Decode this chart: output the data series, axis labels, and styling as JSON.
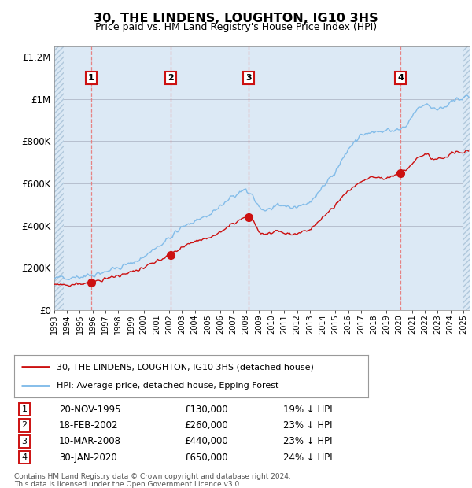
{
  "title": "30, THE LINDENS, LOUGHTON, IG10 3HS",
  "subtitle": "Price paid vs. HM Land Registry's House Price Index (HPI)",
  "footer1": "Contains HM Land Registry data © Crown copyright and database right 2024.",
  "footer2": "This data is licensed under the Open Government Licence v3.0.",
  "legend1": "30, THE LINDENS, LOUGHTON, IG10 3HS (detached house)",
  "legend2": "HPI: Average price, detached house, Epping Forest",
  "transactions": [
    {
      "num": 1,
      "date": "20-NOV-1995",
      "price": "£130,000",
      "pct": "19% ↓ HPI",
      "year": 1995.89
    },
    {
      "num": 2,
      "date": "18-FEB-2002",
      "price": "£260,000",
      "pct": "23% ↓ HPI",
      "year": 2002.12
    },
    {
      "num": 3,
      "date": "10-MAR-2008",
      "price": "£440,000",
      "pct": "23% ↓ HPI",
      "year": 2008.19
    },
    {
      "num": 4,
      "date": "30-JAN-2020",
      "price": "£650,000",
      "pct": "24% ↓ HPI",
      "year": 2020.08
    }
  ],
  "sale_years": [
    1995.89,
    2002.12,
    2008.19,
    2020.08
  ],
  "sale_prices": [
    130000,
    260000,
    440000,
    650000
  ],
  "hpi_color": "#7ab8e8",
  "price_color": "#cc1111",
  "background_color": "#dce9f5",
  "ylim": [
    0,
    1250000
  ],
  "xlim_start": 1993.0,
  "xlim_end": 2025.5,
  "hatch_left_end": 1993.75,
  "hatch_right_start": 2025.0
}
